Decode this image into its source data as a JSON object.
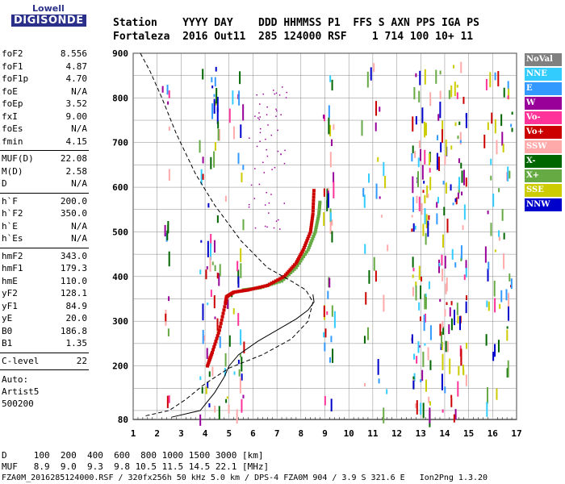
{
  "logo": {
    "line1": "Lowell",
    "line2": "DIGISONDE"
  },
  "header": {
    "row1": "Station    YYYY DAY    DDD HHMMSS P1  FFS S AXN PPS IGA PS",
    "row2": "Fortaleza  2016 Out11  285 124000 RSF    1 714 100 10+ 11"
  },
  "params_group1": [
    {
      "name": "foF2",
      "value": "8.556"
    },
    {
      "name": "foF1",
      "value": "4.87"
    },
    {
      "name": "foF1p",
      "value": "4.70"
    },
    {
      "name": "foE",
      "value": "N/A"
    },
    {
      "name": "foEp",
      "value": "3.52"
    },
    {
      "name": "fxI",
      "value": "9.00"
    },
    {
      "name": "foEs",
      "value": "N/A"
    },
    {
      "name": "fmin",
      "value": "4.15"
    }
  ],
  "params_group2": [
    {
      "name": "MUF(D)",
      "value": "22.08"
    },
    {
      "name": "M(D)",
      "value": "2.58"
    },
    {
      "name": "D",
      "value": "N/A"
    }
  ],
  "params_group3": [
    {
      "name": "h`F",
      "value": "200.0"
    },
    {
      "name": "h`F2",
      "value": "350.0"
    },
    {
      "name": "h`E",
      "value": "N/A"
    },
    {
      "name": "h`Es",
      "value": "N/A"
    }
  ],
  "params_group4": [
    {
      "name": "hmF2",
      "value": "343.0"
    },
    {
      "name": "hmF1",
      "value": "179.3"
    },
    {
      "name": "hmE",
      "value": "110.0"
    },
    {
      "name": "yF2",
      "value": "128.1"
    },
    {
      "name": "yF1",
      "value": "84.9"
    },
    {
      "name": "yE",
      "value": "20.0"
    },
    {
      "name": "B0",
      "value": "186.8"
    },
    {
      "name": "B1",
      "value": "1.35"
    }
  ],
  "clevel": {
    "name": "C-level",
    "value": "22"
  },
  "auto": {
    "line1": "Auto:",
    "line2": "Artist5",
    "line3": "500200"
  },
  "legend": [
    {
      "label": "NoVal",
      "color": "#808080"
    },
    {
      "label": "NNE",
      "color": "#33ccff"
    },
    {
      "label": "E",
      "color": "#3399ff"
    },
    {
      "label": "W",
      "color": "#990099"
    },
    {
      "label": "Vo-",
      "color": "#ff3399"
    },
    {
      "label": "Vo+",
      "color": "#cc0000"
    },
    {
      "label": "SSW",
      "color": "#ffaaaa"
    },
    {
      "label": "X-",
      "color": "#006600"
    },
    {
      "label": "X+",
      "color": "#66aa44"
    },
    {
      "label": "SSE",
      "color": "#cccc00"
    },
    {
      "label": "NNW",
      "color": "#0000cc"
    }
  ],
  "footer": {
    "row1": "D     100  200  400  600  800 1000 1500 3000 [km]",
    "row2": "MUF   8.9  9.0  9.3  9.8 10.5 11.5 14.5 22.1 [MHz]",
    "row3": "FZA0M_2016285124000.RSF / 320fx256h 50 kHz 5.0 km / DPS-4 FZA0M 904 / 3.9 S 321.6 E   Ion2Png 1.3.20"
  },
  "chart_data": {
    "type": "scatter",
    "xlabel": "",
    "ylabel": "",
    "xlim": [
      1,
      17
    ],
    "ylim": [
      80,
      900
    ],
    "xticks": [
      1,
      2,
      3,
      4,
      5,
      6,
      7,
      8,
      9,
      10,
      11,
      12,
      13,
      14,
      15,
      16,
      17
    ],
    "yticks": [
      80,
      200,
      300,
      400,
      500,
      600,
      700,
      800,
      900
    ],
    "grid": true,
    "trace_o": {
      "color": "#cc0000",
      "points": [
        [
          4.1,
          200
        ],
        [
          4.3,
          230
        ],
        [
          4.6,
          280
        ],
        [
          4.85,
          340
        ],
        [
          4.9,
          355
        ],
        [
          5.2,
          365
        ],
        [
          5.8,
          370
        ],
        [
          6.6,
          380
        ],
        [
          7.3,
          400
        ],
        [
          7.8,
          430
        ],
        [
          8.1,
          460
        ],
        [
          8.4,
          500
        ],
        [
          8.5,
          540
        ],
        [
          8.55,
          600
        ]
      ]
    },
    "trace_x": {
      "color": "#66aa44",
      "points": [
        [
          5.6,
          370
        ],
        [
          6.3,
          375
        ],
        [
          7.2,
          390
        ],
        [
          7.8,
          420
        ],
        [
          8.3,
          460
        ],
        [
          8.6,
          500
        ],
        [
          8.75,
          540
        ],
        [
          8.8,
          570
        ]
      ]
    },
    "profile_solid": {
      "points": [
        [
          2.6,
          85
        ],
        [
          3.8,
          100
        ],
        [
          4.4,
          140
        ],
        [
          4.8,
          175
        ],
        [
          5.0,
          200
        ],
        [
          5.4,
          225
        ],
        [
          6.2,
          255
        ],
        [
          7.0,
          280
        ],
        [
          7.8,
          305
        ],
        [
          8.3,
          325
        ],
        [
          8.55,
          343
        ],
        [
          8.5,
          360
        ]
      ]
    },
    "profile_dashed": {
      "points": [
        [
          1.3,
          900
        ],
        [
          1.7,
          860
        ],
        [
          2.2,
          800
        ],
        [
          2.8,
          720
        ],
        [
          3.6,
          630
        ],
        [
          4.4,
          560
        ],
        [
          5.5,
          480
        ],
        [
          6.6,
          420
        ],
        [
          7.6,
          390
        ],
        [
          8.2,
          370
        ],
        [
          8.5,
          343
        ],
        [
          8.3,
          300
        ],
        [
          7.6,
          260
        ],
        [
          6.4,
          225
        ],
        [
          5.0,
          195
        ],
        [
          4.0,
          160
        ],
        [
          3.2,
          125
        ],
        [
          2.5,
          100
        ],
        [
          1.5,
          88
        ]
      ]
    }
  }
}
